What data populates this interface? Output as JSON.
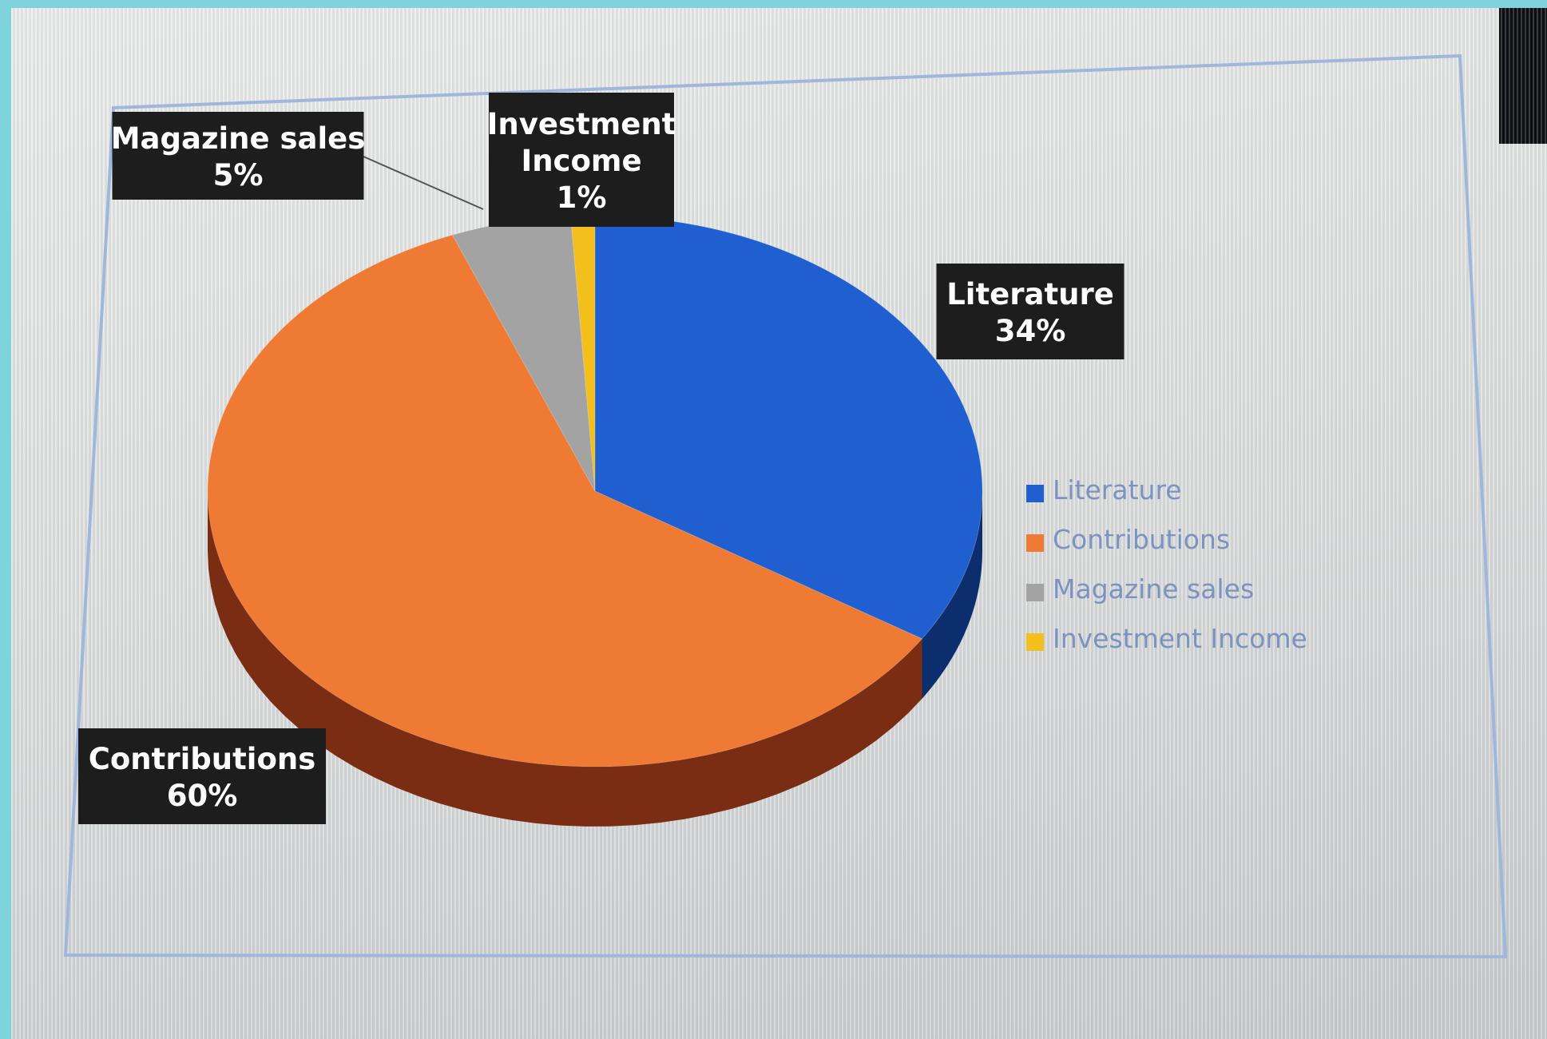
{
  "chart_data": {
    "type": "pie",
    "three_d": true,
    "categories": [
      "Literature",
      "Contributions",
      "Magazine sales",
      "Investment Income"
    ],
    "values": [
      34,
      60,
      5,
      1
    ],
    "data_labels": [
      {
        "name": "Literature",
        "value": "34%"
      },
      {
        "name": "Contributions",
        "value": "60%"
      },
      {
        "name": "Magazine sales",
        "value": "5%"
      },
      {
        "name": "Investment Income",
        "value": "1%"
      }
    ],
    "colors": {
      "Literature": "#1f5fd0",
      "Contributions": "#ee7a34",
      "Magazine sales": "#a3a3a3",
      "Investment Income": "#f2bf1c"
    },
    "side_colors": {
      "Literature": "#0d2e6e",
      "Contributions": "#7a2d12",
      "Magazine sales": "#4d4d4d",
      "Investment Income": "#7a6010"
    },
    "legend": {
      "position": "right",
      "entries": [
        "Literature",
        "Contributions",
        "Magazine sales",
        "Investment Income"
      ]
    },
    "label_box_color": "#1d1d1d"
  }
}
